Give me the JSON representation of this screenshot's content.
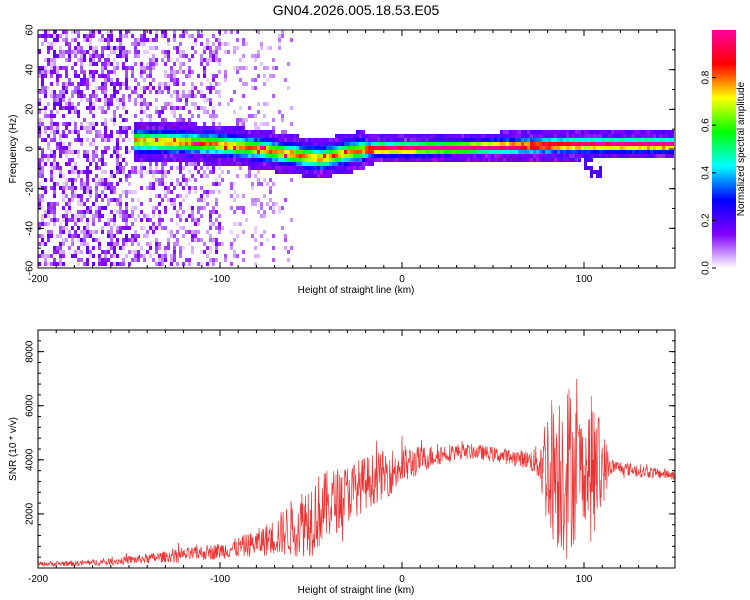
{
  "figure_title": "GN04.2026.005.18.53.E05",
  "chart_data": [
    {
      "type": "heatmap",
      "title": "GN04.2026.005.18.53.E05",
      "xlabel": "Height of straight line (km)",
      "ylabel": "Frequency (Hz)",
      "xlim": [
        -200,
        150
      ],
      "ylim": [
        -60,
        60
      ],
      "xticks": [
        -200,
        -100,
        0,
        100
      ],
      "xtick_labels": [
        "-200",
        "-100",
        "0",
        "100"
      ],
      "yticks": [
        -60,
        -40,
        -20,
        0,
        20,
        40,
        60
      ],
      "ytick_labels": [
        "-60",
        "-40",
        "-20",
        "0",
        "20",
        "40",
        "60"
      ],
      "colorbar": {
        "label": "Normalized spectral amplitude",
        "range": [
          0,
          1
        ],
        "ticks": [
          0.0,
          0.2,
          0.4,
          0.6,
          0.8
        ],
        "tick_labels": [
          "0.0",
          "0.2",
          "0.4",
          "0.6",
          "0.8"
        ],
        "colors": [
          "#ffffff",
          "#8000ff",
          "#0000ff",
          "#00ffff",
          "#00ff00",
          "#ffff00",
          "#ff0000",
          "#ff00a0"
        ]
      },
      "description_points": {
        "band_start_km": -147,
        "band_center_hz": [
          {
            "x": -145,
            "f": 4
          },
          {
            "x": -120,
            "f": 3
          },
          {
            "x": -100,
            "f": 2
          },
          {
            "x": -80,
            "f": 0
          },
          {
            "x": -60,
            "f": -3
          },
          {
            "x": -45,
            "f": -5
          },
          {
            "x": -30,
            "f": -2
          },
          {
            "x": -15,
            "f": 0
          },
          {
            "x": 0,
            "f": 0
          },
          {
            "x": 50,
            "f": 1
          },
          {
            "x": 100,
            "f": 2
          },
          {
            "x": 150,
            "f": 2
          }
        ]
      }
    },
    {
      "type": "line",
      "xlabel": "Height of straight line (km)",
      "ylabel": "SNR (10 * v/v)",
      "xlim": [
        -200,
        150
      ],
      "ylim": [
        0,
        8800
      ],
      "xticks": [
        -200,
        -100,
        0,
        100
      ],
      "xtick_labels": [
        "-200",
        "-100",
        "0",
        "100"
      ],
      "yticks": [
        2000,
        4000,
        6000,
        8000
      ],
      "ytick_labels": [
        "2000",
        "4000",
        "6000",
        "8000"
      ],
      "color": "#ee3333",
      "envelope": {
        "x": [
          -200,
          -180,
          -160,
          -140,
          -120,
          -100,
          -90,
          -80,
          -70,
          -60,
          -50,
          -40,
          -30,
          -20,
          -10,
          0,
          10,
          20,
          30,
          40,
          50,
          60,
          70,
          75,
          80,
          85,
          90,
          95,
          100,
          105,
          110,
          115,
          120,
          130,
          140,
          150
        ],
        "baseline": [
          150,
          170,
          230,
          350,
          480,
          630,
          760,
          920,
          1150,
          1500,
          1900,
          2350,
          2750,
          3150,
          3450,
          3750,
          4000,
          4200,
          4300,
          4300,
          4200,
          4100,
          4000,
          3900,
          3800,
          3700,
          3700,
          3700,
          3700,
          3600,
          3700,
          3750,
          3700,
          3600,
          3500,
          3450
        ],
        "amplitude": [
          80,
          100,
          130,
          180,
          240,
          300,
          380,
          500,
          700,
          1100,
          1500,
          1300,
          1100,
          1000,
          900,
          800,
          500,
          400,
          300,
          280,
          280,
          300,
          350,
          700,
          2500,
          3000,
          3500,
          2800,
          1800,
          3000,
          1500,
          300,
          250,
          250,
          200,
          200
        ]
      }
    }
  ]
}
